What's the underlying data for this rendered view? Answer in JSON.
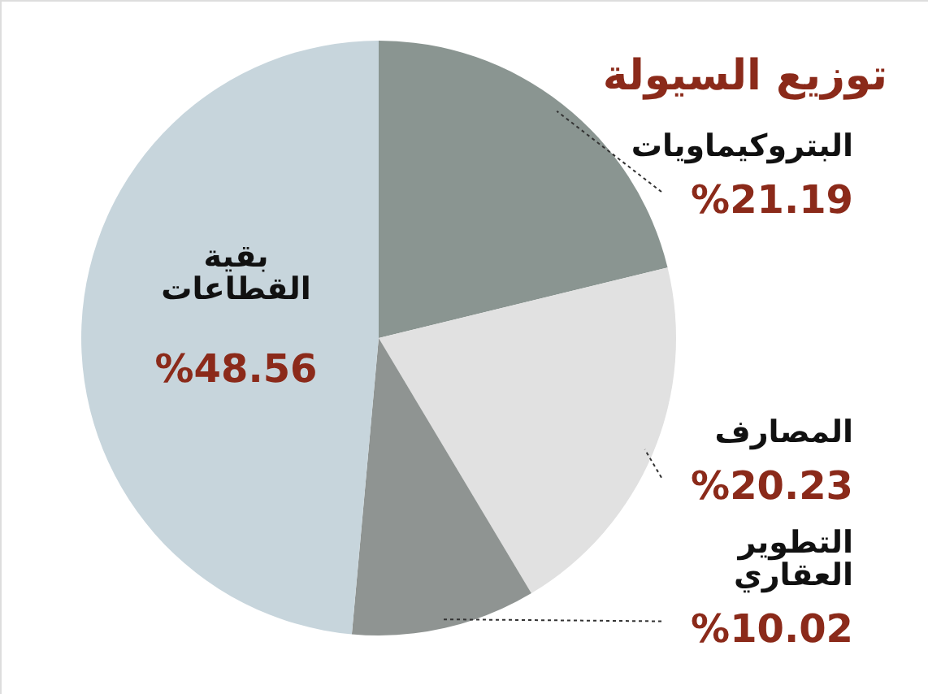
{
  "chart_data": {
    "type": "pie",
    "title": "توزيع السيولة",
    "categories": [
      "البتروكيماويات",
      "المصارف",
      "التطوير العقاري",
      "بقية القطاعات"
    ],
    "values": [
      21.19,
      20.23,
      10.02,
      48.56
    ],
    "colors": [
      "#8a9591",
      "#e1e1e1",
      "#8f9492",
      "#c7d5dc"
    ],
    "value_labels": [
      "%21.19",
      "%20.23",
      "%10.02",
      "%48.56"
    ],
    "legend": false
  }
}
